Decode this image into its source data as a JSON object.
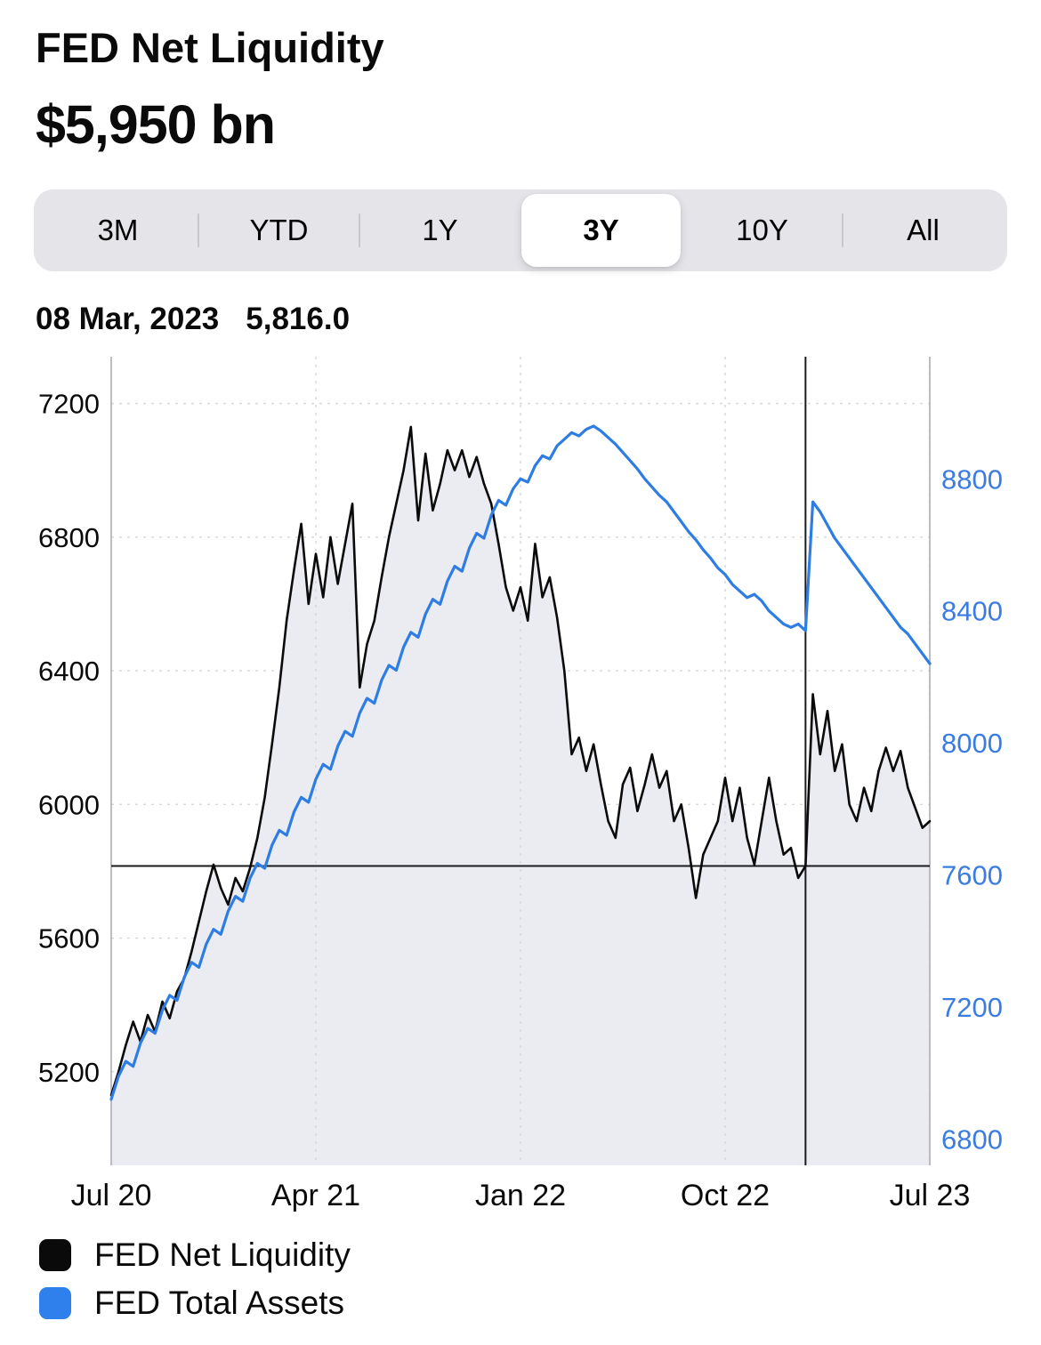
{
  "header": {
    "title": "FED Net Liquidity",
    "value": "$5,950 bn"
  },
  "range_selector": {
    "options": [
      "3M",
      "YTD",
      "1Y",
      "3Y",
      "10Y",
      "All"
    ],
    "selected": "3Y"
  },
  "tooltip": {
    "date": "08 Mar, 2023",
    "value": "5,816.0"
  },
  "chart_data": {
    "type": "line",
    "grid": true,
    "legend_position": "bottom",
    "x_tick_labels": [
      "Jul 20",
      "Apr 21",
      "Jan 22",
      "Oct 22",
      "Jul 23"
    ],
    "left_axis": {
      "label": "FED Net Liquidity",
      "ticks": [
        7200,
        6800,
        6400,
        6000,
        5600,
        5200
      ],
      "range": [
        4920,
        7340
      ],
      "color": "#0a0a0a"
    },
    "right_axis": {
      "label": "FED Total Assets",
      "ticks": [
        8800,
        8400,
        8000,
        7600,
        7200,
        6800
      ],
      "range": [
        6720,
        9170
      ],
      "color": "#3b7ce0"
    },
    "crosshair": {
      "index": 95,
      "date": "08 Mar, 2023",
      "value": 5816.0
    },
    "series": [
      {
        "name": "FED Net Liquidity",
        "axis": "left",
        "color": "#0a0a0a",
        "fill": "#ebecf2",
        "values": [
          5130,
          5200,
          5280,
          5350,
          5290,
          5370,
          5320,
          5410,
          5360,
          5440,
          5480,
          5560,
          5650,
          5740,
          5820,
          5750,
          5700,
          5780,
          5740,
          5810,
          5900,
          6020,
          6180,
          6350,
          6550,
          6700,
          6840,
          6600,
          6750,
          6620,
          6800,
          6660,
          6780,
          6900,
          6350,
          6480,
          6550,
          6680,
          6800,
          6900,
          7000,
          7130,
          6850,
          7050,
          6880,
          6960,
          7060,
          7000,
          7060,
          6980,
          7040,
          6960,
          6900,
          6780,
          6650,
          6580,
          6650,
          6550,
          6780,
          6620,
          6680,
          6560,
          6400,
          6150,
          6200,
          6100,
          6180,
          6060,
          5950,
          5900,
          6060,
          6110,
          5980,
          6060,
          6150,
          6050,
          6100,
          5950,
          6000,
          5870,
          5720,
          5850,
          5900,
          5950,
          6080,
          5950,
          6050,
          5900,
          5820,
          5950,
          6080,
          5950,
          5850,
          5870,
          5780,
          5816,
          6330,
          6150,
          6280,
          6100,
          6180,
          6000,
          5950,
          6050,
          5980,
          6100,
          6170,
          6100,
          6160,
          6050,
          5990,
          5930,
          5950
        ]
      },
      {
        "name": "FED Total Assets",
        "axis": "right",
        "color": "#2e7de3",
        "values": [
          6920,
          6990,
          7035,
          7020,
          7090,
          7135,
          7120,
          7190,
          7235,
          7220,
          7290,
          7335,
          7320,
          7390,
          7435,
          7420,
          7490,
          7535,
          7520,
          7590,
          7635,
          7620,
          7690,
          7735,
          7720,
          7790,
          7835,
          7820,
          7890,
          7935,
          7920,
          7990,
          8035,
          8020,
          8090,
          8135,
          8120,
          8190,
          8235,
          8220,
          8290,
          8335,
          8320,
          8390,
          8435,
          8420,
          8490,
          8535,
          8520,
          8590,
          8635,
          8620,
          8690,
          8735,
          8720,
          8770,
          8800,
          8790,
          8840,
          8870,
          8860,
          8900,
          8920,
          8940,
          8930,
          8950,
          8960,
          8945,
          8925,
          8905,
          8880,
          8855,
          8830,
          8800,
          8775,
          8750,
          8730,
          8700,
          8670,
          8640,
          8615,
          8585,
          8560,
          8530,
          8510,
          8480,
          8460,
          8440,
          8450,
          8430,
          8400,
          8380,
          8360,
          8350,
          8360,
          8340,
          8730,
          8700,
          8660,
          8620,
          8590,
          8560,
          8530,
          8500,
          8470,
          8440,
          8410,
          8380,
          8350,
          8330,
          8300,
          8270,
          8240
        ]
      }
    ]
  },
  "legend": {
    "items": [
      {
        "label": "FED Net Liquidity",
        "color": "#0a0a0a"
      },
      {
        "label": "FED Total Assets",
        "color": "#2f80ed"
      }
    ]
  }
}
